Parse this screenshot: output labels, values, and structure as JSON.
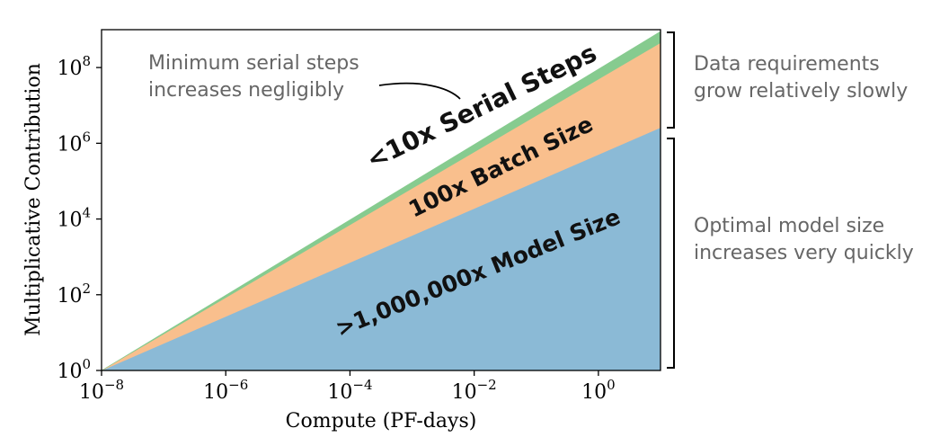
{
  "chart_data": {
    "type": "area",
    "xlabel": "Compute (PF-days)",
    "ylabel": "Multiplicative Contribution",
    "x_scale": "log",
    "y_scale": "log",
    "xlim": [
      1e-08,
      10
    ],
    "ylim": [
      1,
      1000000000.0
    ],
    "x_ticks": [
      {
        "value": 1e-08,
        "base": "10",
        "exp": "−8"
      },
      {
        "value": 1e-06,
        "base": "10",
        "exp": "−6"
      },
      {
        "value": 0.0001,
        "base": "10",
        "exp": "−4"
      },
      {
        "value": 0.01,
        "base": "10",
        "exp": "−2"
      },
      {
        "value": 1,
        "base": "10",
        "exp": "0"
      }
    ],
    "y_ticks": [
      {
        "value": 1,
        "base": "10",
        "exp": "0"
      },
      {
        "value": 100,
        "base": "10",
        "exp": "2"
      },
      {
        "value": 10000,
        "base": "10",
        "exp": "4"
      },
      {
        "value": 1000000,
        "base": "10",
        "exp": "6"
      },
      {
        "value": 100000000,
        "base": "10",
        "exp": "8"
      }
    ],
    "series": [
      {
        "name": ">1,000,000x Model Size",
        "color": "#8bbad6",
        "x": [
          1e-08,
          10
        ],
        "cumulative_y": [
          1,
          2600000.0
        ]
      },
      {
        "name": "100x Batch Size",
        "color": "#f9bf8d",
        "x": [
          1e-08,
          10
        ],
        "cumulative_y": [
          1,
          450000000.0
        ]
      },
      {
        "name": "<10x Serial Steps",
        "color": "#86cb8f",
        "x": [
          1e-08,
          10
        ],
        "cumulative_y": [
          1,
          900000000.0
        ]
      }
    ],
    "annotations": {
      "serial_note": [
        "Minimum serial steps",
        "increases negligibly"
      ],
      "data_note": [
        "Data requirements",
        "grow relatively slowly"
      ],
      "model_note": [
        "Optimal model size",
        "increases very quickly"
      ]
    }
  }
}
